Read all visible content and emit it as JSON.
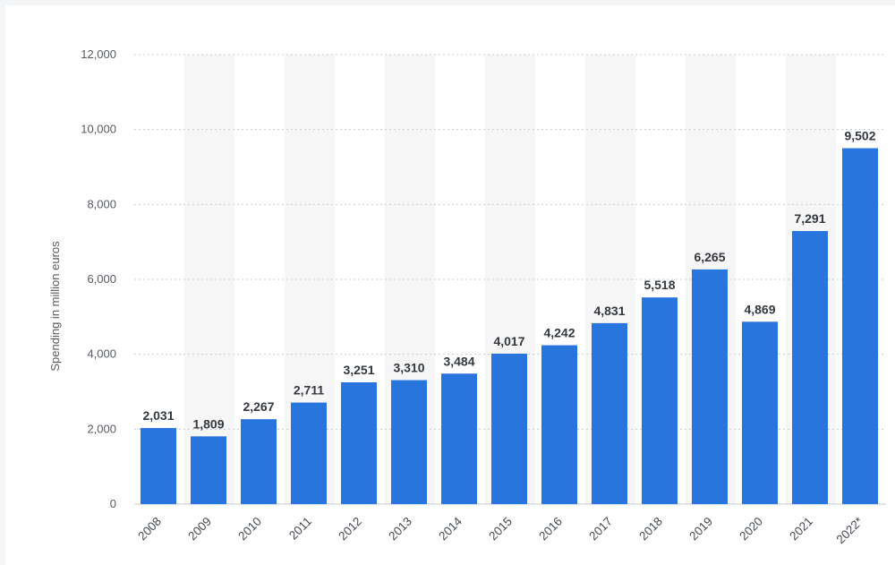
{
  "chart_data": {
    "type": "bar",
    "title": "",
    "xlabel": "",
    "ylabel": "Spending in million euros",
    "ylim": [
      0,
      12000
    ],
    "yticks": [
      0,
      2000,
      4000,
      6000,
      8000,
      10000,
      12000
    ],
    "ytick_labels": [
      "0",
      "2,000",
      "4,000",
      "6,000",
      "8,000",
      "10,000",
      "12,000"
    ],
    "categories": [
      "2008",
      "2009",
      "2010",
      "2011",
      "2012",
      "2013",
      "2014",
      "2015",
      "2016",
      "2017",
      "2018",
      "2019",
      "2020",
      "2021",
      "2022*"
    ],
    "values": [
      2031,
      1809,
      2267,
      2711,
      3251,
      3310,
      3484,
      4017,
      4242,
      4831,
      5518,
      6265,
      4869,
      7291,
      9502
    ],
    "value_labels": [
      "2,031",
      "1,809",
      "2,267",
      "2,711",
      "3,251",
      "3,310",
      "3,484",
      "4,017",
      "4,242",
      "4,831",
      "5,518",
      "6,265",
      "4,869",
      "7,291",
      "9,502"
    ],
    "bar_color": "#2876dd",
    "grid": true
  }
}
